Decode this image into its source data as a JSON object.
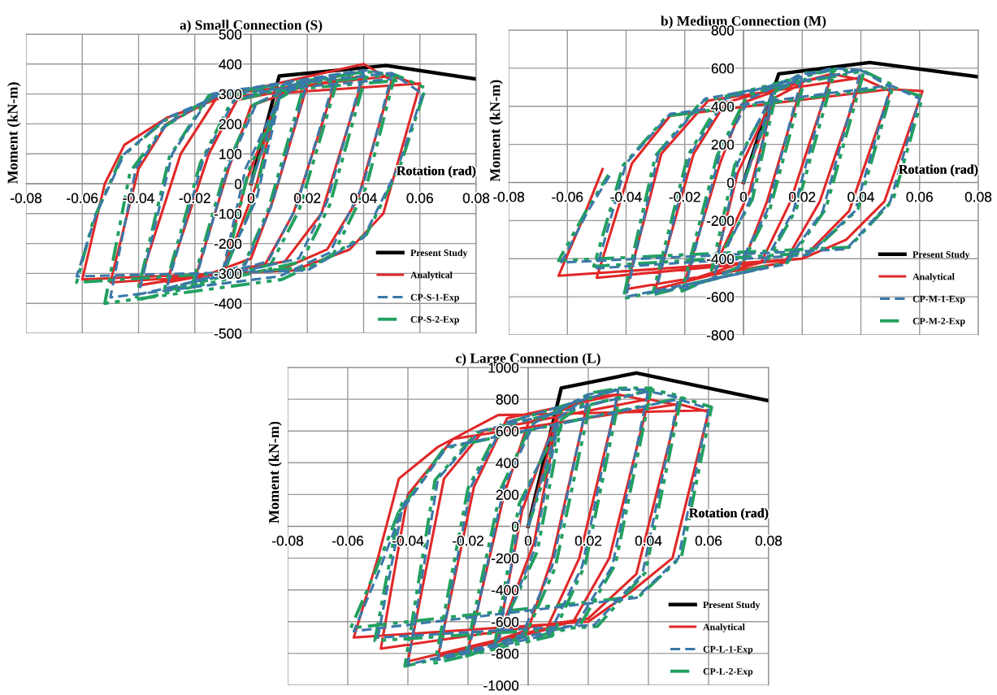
{
  "chart_data": [
    {
      "type": "line",
      "title": "a) Small Connection (S)",
      "xlabel": "Rotation (rad)",
      "ylabel": "Moment (kN-m)",
      "xlim": [
        -0.08,
        0.08
      ],
      "xticks": [
        -0.08,
        -0.06,
        -0.04,
        -0.02,
        0,
        0.02,
        0.04,
        0.06,
        0.08
      ],
      "ylim": [
        -500,
        500
      ],
      "yticks": [
        -500,
        -400,
        -300,
        -200,
        -100,
        0,
        100,
        200,
        300,
        400,
        500
      ],
      "grid": true,
      "legend": "bottom right",
      "marker": "none",
      "series": [
        {
          "name": "Present Study",
          "color": "#000000",
          "line_style": "solid",
          "x": [
            0,
            0.01,
            0.048,
            0.08
          ],
          "values": [
            0,
            360,
            395,
            350
          ]
        },
        {
          "name": "Analytical",
          "color": "#e02828",
          "line_style": "solid",
          "x": [
            0,
            0.01,
            0.002,
            -0.01,
            -0.002,
            0.01,
            0.02,
            0.008,
            0,
            -0.02,
            -0.008,
            0,
            0.02,
            0.03,
            0.015,
            0.005,
            -0.03,
            -0.015,
            -0.005,
            0.03,
            0.04,
            0.025,
            0.012,
            -0.04,
            -0.025,
            -0.012,
            0.04,
            0.05,
            0.038,
            0.027,
            0.01,
            -0.05,
            -0.04,
            -0.03,
            -0.01,
            0.05,
            0.06,
            0.047,
            0.035,
            0.015,
            -0.06,
            -0.052,
            -0.045,
            -0.03,
            -0.01,
            0.06
          ],
          "values": [
            0,
            300,
            0,
            -300,
            0,
            300,
            330,
            -50,
            -250,
            -320,
            50,
            260,
            330,
            340,
            -100,
            -270,
            -330,
            100,
            280,
            345,
            360,
            -100,
            -260,
            -340,
            100,
            290,
            400,
            345,
            -50,
            -220,
            -290,
            -330,
            50,
            200,
            300,
            360,
            330,
            -100,
            -220,
            -290,
            -320,
            0,
            130,
            220,
            290,
            335
          ]
        },
        {
          "name": "CP-S-1-Exp",
          "color": "#3a78a8",
          "line_style": "dashed",
          "x": [
            0,
            0.01,
            0.002,
            -0.01,
            -0.002,
            0.01,
            0.02,
            0.007,
            -0.002,
            -0.02,
            -0.008,
            0.002,
            0.02,
            0.03,
            0.016,
            0.006,
            -0.03,
            -0.017,
            -0.006,
            0.03,
            0.04,
            0.027,
            0.017,
            -0.04,
            -0.028,
            -0.014,
            0.04,
            0.05,
            0.04,
            0.028,
            0.01,
            -0.05,
            -0.041,
            -0.03,
            -0.01,
            0.05,
            0.061,
            0.052,
            0.04,
            0.02,
            -0.062,
            -0.055,
            -0.045,
            -0.03,
            -0.01,
            0.05
          ],
          "values": [
            0,
            280,
            -50,
            -290,
            50,
            290,
            340,
            -80,
            -270,
            -330,
            60,
            270,
            345,
            360,
            -80,
            -260,
            -350,
            80,
            280,
            365,
            375,
            -60,
            -250,
            -370,
            100,
            300,
            380,
            365,
            0,
            -230,
            -310,
            -380,
            50,
            200,
            310,
            370,
            300,
            50,
            -180,
            -290,
            -310,
            -100,
            100,
            220,
            300,
            350
          ]
        },
        {
          "name": "CP-S-2-Exp",
          "color": "#22a060",
          "line_style": "dotted",
          "x": [
            0,
            0.009,
            0.001,
            -0.009,
            -0.001,
            0.01,
            0.019,
            0.006,
            -0.003,
            -0.021,
            -0.009,
            0.001,
            0.021,
            0.031,
            0.017,
            0.007,
            -0.031,
            -0.018,
            -0.007,
            0.031,
            0.041,
            0.028,
            0.018,
            -0.041,
            -0.029,
            -0.015,
            0.041,
            0.051,
            0.041,
            0.029,
            0.011,
            -0.052,
            -0.043,
            -0.031,
            -0.011,
            0.051,
            0.062,
            0.053,
            0.041,
            0.021,
            -0.062,
            -0.056,
            -0.046,
            -0.031,
            -0.011,
            0.052
          ],
          "values": [
            0,
            270,
            -60,
            -280,
            40,
            285,
            335,
            -90,
            -280,
            -340,
            50,
            265,
            340,
            355,
            -90,
            -270,
            -360,
            70,
            275,
            360,
            370,
            -70,
            -260,
            -390,
            90,
            295,
            375,
            360,
            -10,
            -240,
            -320,
            -400,
            40,
            190,
            305,
            365,
            320,
            60,
            -170,
            -280,
            -330,
            -120,
            90,
            210,
            295,
            345
          ]
        }
      ]
    },
    {
      "type": "line",
      "title": "b) Medium Connection (M)",
      "xlabel": "Rotation (rad)",
      "ylabel": "Moment (kN-m)",
      "xlim": [
        -0.08,
        0.08
      ],
      "xticks": [
        -0.08,
        -0.06,
        -0.04,
        -0.02,
        0,
        0.02,
        0.04,
        0.06,
        0.08
      ],
      "ylim": [
        -800,
        800
      ],
      "yticks": [
        -800,
        -600,
        -400,
        -200,
        0,
        200,
        400,
        600,
        800
      ],
      "grid": true,
      "legend": "bottom right",
      "marker": "none",
      "series": [
        {
          "name": "Present Study",
          "color": "#000000",
          "line_style": "solid",
          "x": [
            0,
            0.012,
            0.043,
            0.08
          ],
          "values": [
            0,
            570,
            630,
            555
          ]
        },
        {
          "name": "Analytical",
          "color": "#e02828",
          "line_style": "solid",
          "x": [
            0,
            0.01,
            0.002,
            -0.01,
            -0.002,
            0.01,
            0.02,
            0.008,
            0,
            -0.02,
            -0.008,
            0,
            0.02,
            0.03,
            0.016,
            0.006,
            -0.03,
            -0.017,
            -0.006,
            0.03,
            0.04,
            0.026,
            0.014,
            -0.04,
            -0.028,
            -0.012,
            0.04,
            0.05,
            0.036,
            0.02,
            -0.05,
            -0.038,
            -0.025,
            0.05,
            0.061,
            0.048,
            0.035,
            0.02,
            -0.063,
            -0.055,
            -0.048
          ],
          "values": [
            0,
            420,
            -50,
            -450,
            50,
            440,
            520,
            -100,
            -420,
            -520,
            100,
            420,
            530,
            560,
            -100,
            -420,
            -560,
            150,
            420,
            570,
            540,
            -100,
            -420,
            -560,
            150,
            430,
            550,
            480,
            -150,
            -400,
            -500,
            100,
            350,
            490,
            480,
            -100,
            -300,
            -400,
            -490,
            -200,
            70
          ]
        },
        {
          "name": "CP-M-1-Exp",
          "color": "#3a78a8",
          "line_style": "dashed",
          "x": [
            0,
            0.01,
            0.002,
            -0.01,
            -0.002,
            0.01,
            0.02,
            0.008,
            -0.002,
            -0.02,
            -0.008,
            0.002,
            0.02,
            0.03,
            0.017,
            0.006,
            -0.03,
            -0.018,
            -0.006,
            0.03,
            0.04,
            0.027,
            0.014,
            -0.04,
            -0.029,
            -0.013,
            0.04,
            0.05,
            0.038,
            0.022,
            -0.05,
            -0.04,
            -0.025,
            0.05,
            0.06,
            0.05,
            0.035,
            -0.062,
            -0.053,
            -0.045
          ],
          "values": [
            0,
            450,
            -100,
            -480,
            100,
            470,
            560,
            -150,
            -450,
            -560,
            150,
            440,
            570,
            590,
            -150,
            -450,
            -580,
            150,
            440,
            600,
            590,
            -150,
            -430,
            -600,
            150,
            440,
            590,
            500,
            -150,
            -380,
            -450,
            100,
            360,
            510,
            440,
            -100,
            -350,
            -420,
            -150,
            50
          ]
        },
        {
          "name": "CP-M-2-Exp",
          "color": "#22a060",
          "line_style": "dotted",
          "x": [
            0,
            0.011,
            0.003,
            -0.011,
            -0.003,
            0.011,
            0.021,
            0.009,
            -0.001,
            -0.021,
            -0.009,
            0.001,
            0.021,
            0.031,
            0.018,
            0.007,
            -0.031,
            -0.019,
            -0.007,
            0.031,
            0.041,
            0.028,
            0.015,
            -0.041,
            -0.03,
            -0.014,
            0.041,
            0.051,
            0.039,
            0.023,
            -0.051,
            -0.041,
            -0.026,
            0.051,
            0.061,
            0.051,
            0.036,
            -0.063,
            -0.054,
            -0.046
          ],
          "values": [
            0,
            460,
            -90,
            -470,
            90,
            480,
            550,
            -140,
            -440,
            -570,
            140,
            450,
            575,
            580,
            -140,
            -440,
            -590,
            140,
            450,
            595,
            580,
            -140,
            -420,
            -610,
            140,
            430,
            585,
            510,
            -140,
            -370,
            -440,
            90,
            350,
            500,
            450,
            -90,
            -340,
            -410,
            -160,
            40
          ]
        }
      ]
    },
    {
      "type": "line",
      "title": "c) Large Connection (L)",
      "xlabel": "Rotation (rad)",
      "ylabel": "Moment (kN-m)",
      "xlim": [
        -0.08,
        0.08
      ],
      "xticks": [
        -0.08,
        -0.06,
        -0.04,
        -0.02,
        0,
        0.02,
        0.04,
        0.06,
        0.08
      ],
      "ylim": [
        -1000,
        1000
      ],
      "yticks": [
        -1000,
        -800,
        -600,
        -400,
        -200,
        0,
        200,
        400,
        600,
        800,
        1000
      ],
      "grid": true,
      "legend": "bottom right",
      "marker": "none",
      "series": [
        {
          "name": "Present Study",
          "color": "#000000",
          "line_style": "solid",
          "x": [
            0,
            0.011,
            0.036,
            0.08
          ],
          "values": [
            0,
            870,
            965,
            790
          ]
        },
        {
          "name": "Analytical",
          "color": "#e02828",
          "line_style": "solid",
          "x": [
            0,
            0.01,
            0.002,
            -0.01,
            -0.002,
            0.01,
            0.02,
            0.008,
            0,
            -0.02,
            -0.008,
            0,
            0.02,
            0.03,
            0.017,
            0.006,
            -0.03,
            -0.018,
            -0.007,
            0.03,
            0.04,
            0.027,
            0.015,
            -0.04,
            -0.028,
            -0.015,
            0.04,
            0.05,
            0.036,
            0.02,
            -0.049,
            -0.04,
            -0.025,
            0.05,
            0.06,
            0.048,
            0.035,
            0.02,
            -0.058,
            -0.05,
            -0.043,
            -0.03,
            -0.01,
            0.06
          ],
          "values": [
            0,
            700,
            -100,
            -700,
            100,
            720,
            800,
            -200,
            -650,
            -780,
            200,
            650,
            810,
            830,
            -200,
            -650,
            -820,
            250,
            680,
            830,
            790,
            -200,
            -600,
            -850,
            300,
            600,
            800,
            760,
            -300,
            -580,
            -770,
            200,
            550,
            770,
            720,
            -200,
            -400,
            -600,
            -700,
            -200,
            300,
            500,
            700,
            730
          ]
        },
        {
          "name": "CP-L-1-Exp",
          "color": "#3a78a8",
          "line_style": "dashed",
          "x": [
            0,
            0.01,
            0.002,
            -0.01,
            -0.002,
            0.01,
            0.02,
            0.008,
            -0.002,
            -0.02,
            -0.008,
            0.002,
            0.02,
            0.03,
            0.018,
            0.007,
            -0.03,
            -0.019,
            -0.008,
            0.03,
            0.04,
            0.028,
            0.016,
            -0.04,
            -0.03,
            -0.016,
            0.04,
            0.05,
            0.038,
            0.022,
            -0.05,
            -0.042,
            -0.027,
            0.05,
            0.06,
            0.05,
            0.036,
            -0.058,
            -0.05,
            -0.04
          ],
          "values": [
            0,
            650,
            -150,
            -720,
            150,
            680,
            820,
            -250,
            -680,
            -800,
            250,
            650,
            830,
            860,
            -250,
            -680,
            -840,
            250,
            650,
            860,
            860,
            -250,
            -620,
            -870,
            300,
            600,
            850,
            810,
            -300,
            -620,
            -700,
            100,
            500,
            800,
            740,
            -200,
            -450,
            -660,
            -300,
            200
          ]
        },
        {
          "name": "CP-L-2-Exp",
          "color": "#22a060",
          "line_style": "dotted",
          "x": [
            0,
            0.011,
            0.003,
            -0.011,
            -0.003,
            0.011,
            0.021,
            0.009,
            -0.001,
            -0.021,
            -0.009,
            0.001,
            0.021,
            0.031,
            0.019,
            0.008,
            -0.031,
            -0.02,
            -0.009,
            0.031,
            0.041,
            0.029,
            0.017,
            -0.041,
            -0.031,
            -0.017,
            0.041,
            0.051,
            0.039,
            0.023,
            -0.051,
            -0.043,
            -0.028,
            0.051,
            0.061,
            0.051,
            0.037,
            -0.059,
            -0.051,
            -0.041
          ],
          "values": [
            0,
            640,
            -160,
            -730,
            140,
            670,
            810,
            -260,
            -690,
            -820,
            240,
            640,
            840,
            870,
            -240,
            -690,
            -860,
            240,
            640,
            870,
            870,
            -240,
            -630,
            -880,
            290,
            590,
            860,
            820,
            -290,
            -630,
            -720,
            90,
            490,
            810,
            750,
            -190,
            -440,
            -640,
            -290,
            190
          ]
        }
      ]
    }
  ]
}
